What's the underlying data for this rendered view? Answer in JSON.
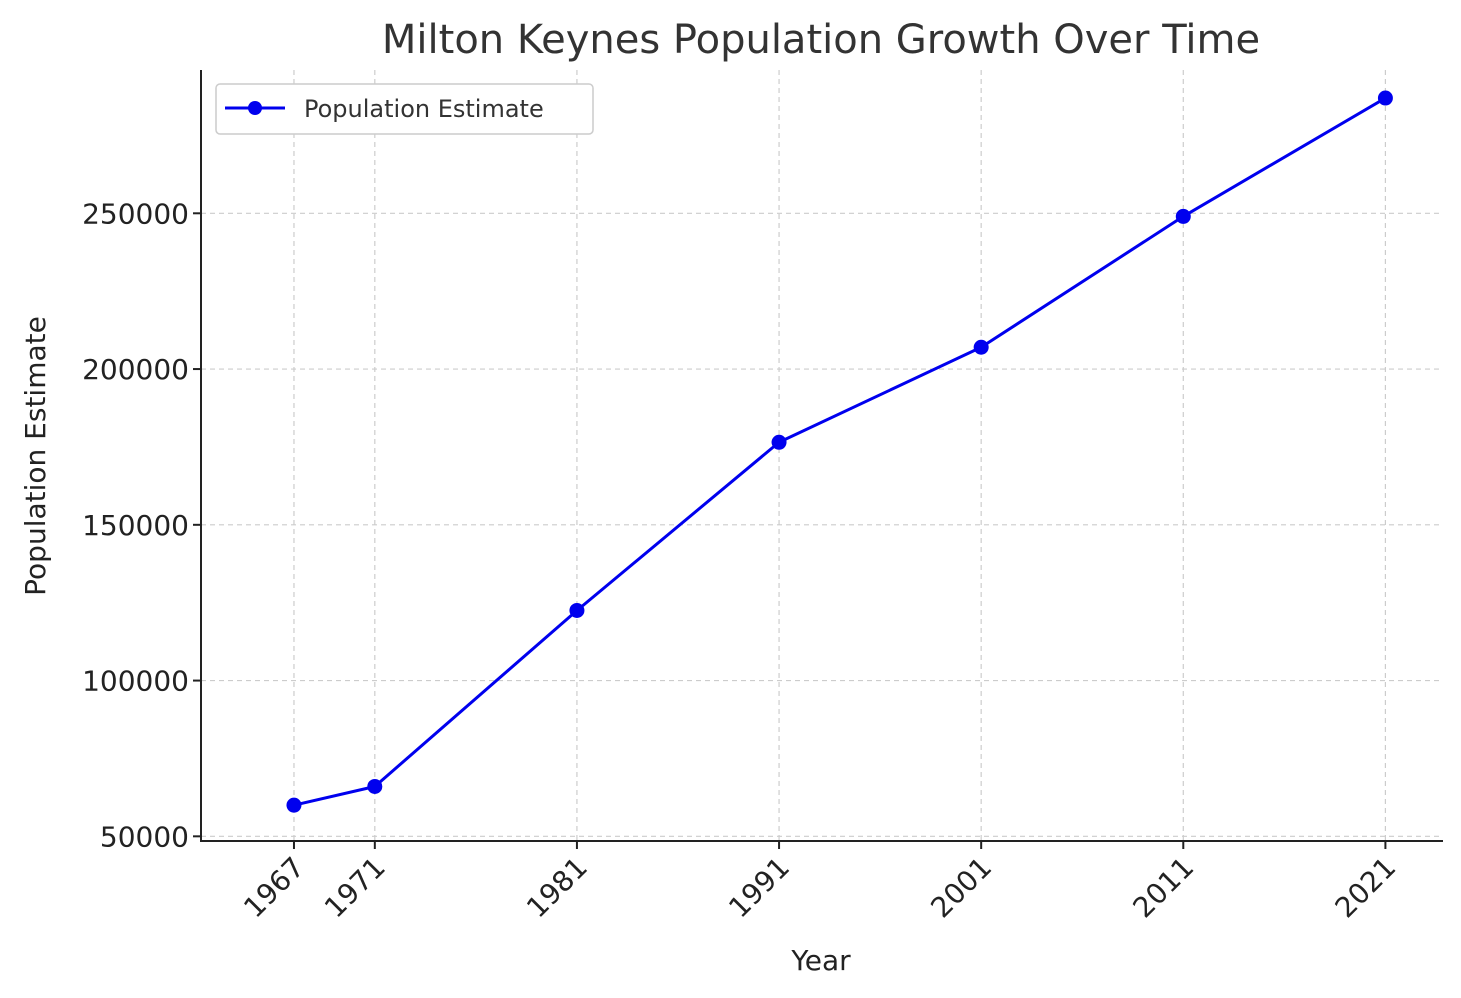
{
  "chart_data": {
    "type": "line",
    "title": "Milton Keynes Population Growth Over Time",
    "xlabel": "Year",
    "ylabel": "Population Estimate",
    "x": [
      1967,
      1971,
      1981,
      1991,
      2001,
      2011,
      2021
    ],
    "x_tick_labels": [
      "1967",
      "1971",
      "1981",
      "1991",
      "2001",
      "2011",
      "2021"
    ],
    "y_ticks": [
      50000,
      100000,
      150000,
      200000,
      250000
    ],
    "y_tick_labels": [
      "50000",
      "100000",
      "150000",
      "200000",
      "250000"
    ],
    "xlim": [
      1962.4,
      2023.8
    ],
    "ylim": [
      48500,
      296000
    ],
    "series": [
      {
        "name": "Population Estimate",
        "color": "#0000ee",
        "marker": "circle",
        "values": [
          60000,
          66000,
          122500,
          176500,
          207000,
          249000,
          287000
        ]
      }
    ],
    "grid": true,
    "legend_position": "top-left"
  }
}
